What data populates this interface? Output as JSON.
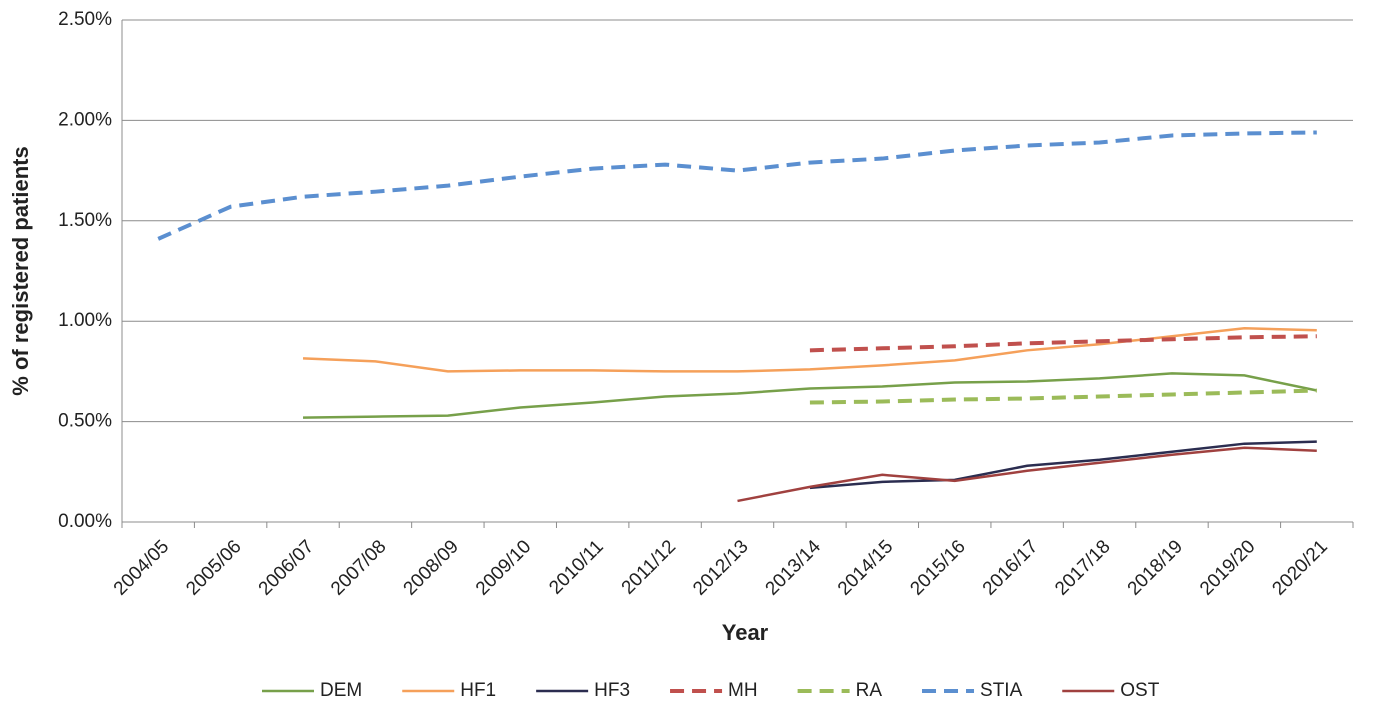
{
  "chart_data": {
    "type": "line",
    "y_label": "% of registered patients",
    "x_label": "Year",
    "categories": [
      "2004/05",
      "2005/06",
      "2006/07",
      "2007/08",
      "2008/09",
      "2009/10",
      "2010/11",
      "2011/12",
      "2012/13",
      "2013/14",
      "2014/15",
      "2015/16",
      "2016/17",
      "2017/18",
      "2018/19",
      "2019/20",
      "2020/21"
    ],
    "ylim": [
      0,
      2.5
    ],
    "yticks": [
      {
        "value": 0,
        "label": "0.00%"
      },
      {
        "value": 0.5,
        "label": "0.50%"
      },
      {
        "value": 1,
        "label": "1.00%"
      },
      {
        "value": 1.5,
        "label": "1.50%"
      },
      {
        "value": 2,
        "label": "2.00%"
      },
      {
        "value": 2.5,
        "label": "2.50%"
      }
    ],
    "grid": true,
    "legend": "bottom",
    "series": [
      {
        "name": "DEM",
        "color": "#77a04a",
        "dashed": false,
        "values": [
          null,
          null,
          0.52,
          0.525,
          0.53,
          0.57,
          0.595,
          0.625,
          0.64,
          0.665,
          0.675,
          0.695,
          0.7,
          0.715,
          0.74,
          0.73,
          0.655
        ]
      },
      {
        "name": "HF1",
        "color": "#f5a05a",
        "dashed": false,
        "values": [
          null,
          null,
          0.815,
          0.8,
          0.75,
          0.755,
          0.755,
          0.75,
          0.75,
          0.76,
          0.78,
          0.805,
          0.855,
          0.885,
          0.925,
          0.965,
          0.955
        ]
      },
      {
        "name": "HF3",
        "color": "#2b2d50",
        "dashed": false,
        "values": [
          null,
          null,
          null,
          null,
          null,
          null,
          null,
          null,
          null,
          0.17,
          0.2,
          0.21,
          0.28,
          0.31,
          0.35,
          0.39,
          0.4
        ]
      },
      {
        "name": "MH",
        "color": "#c0504d",
        "dashed": true,
        "values": [
          null,
          null,
          null,
          null,
          null,
          null,
          null,
          null,
          null,
          0.855,
          0.865,
          0.875,
          0.89,
          0.9,
          0.91,
          0.92,
          0.925
        ]
      },
      {
        "name": "RA",
        "color": "#9bbb59",
        "dashed": true,
        "values": [
          null,
          null,
          null,
          null,
          null,
          null,
          null,
          null,
          null,
          0.595,
          0.6,
          0.61,
          0.615,
          0.625,
          0.635,
          0.645,
          0.655
        ]
      },
      {
        "name": "STIA",
        "color": "#5b8fd0",
        "dashed": true,
        "values": [
          1.41,
          1.57,
          1.62,
          1.645,
          1.675,
          1.72,
          1.76,
          1.78,
          1.75,
          1.79,
          1.81,
          1.85,
          1.875,
          1.89,
          1.925,
          1.935,
          1.94
        ]
      },
      {
        "name": "OST",
        "color": "#a0413f",
        "dashed": false,
        "values": [
          null,
          null,
          null,
          null,
          null,
          null,
          null,
          null,
          0.105,
          0.175,
          0.235,
          0.205,
          0.255,
          0.295,
          0.335,
          0.37,
          0.355
        ]
      }
    ]
  }
}
